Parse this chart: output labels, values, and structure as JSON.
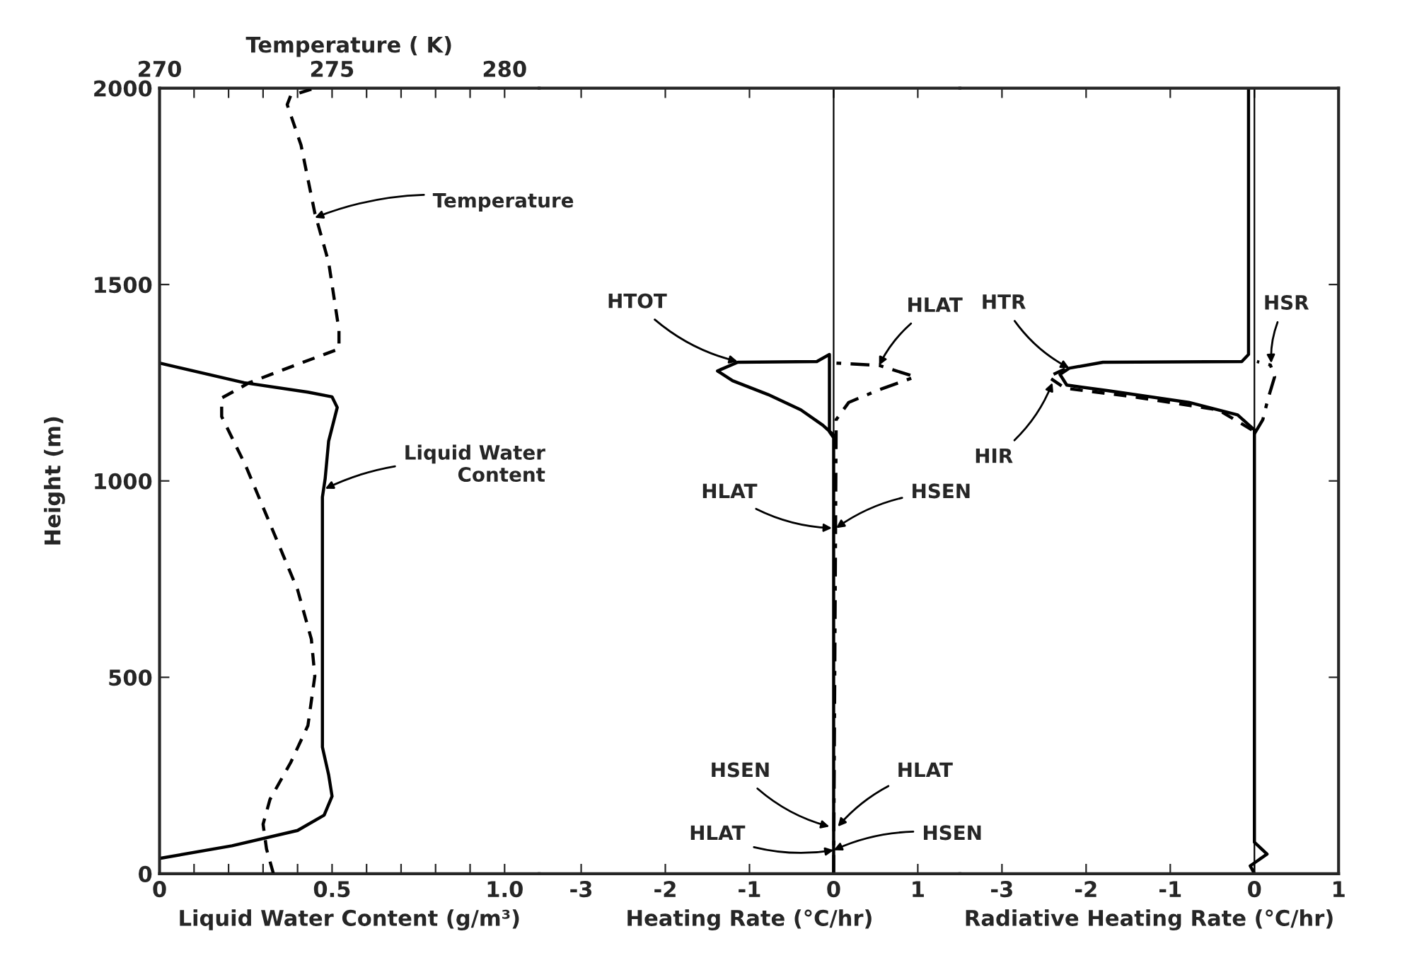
{
  "chart_data": [
    {
      "type": "line",
      "xlabel": "Liquid Water Content (g/m³)",
      "ylabel": "Height (m)",
      "x2label": "Temperature ( K)",
      "xlim": [
        0,
        1.1
      ],
      "xticks": [
        0,
        {
          "value": 0.1,
          "label": null
        },
        {
          "value": 0.2,
          "label": null
        },
        {
          "value": 0.3,
          "label": null
        },
        {
          "value": 0.4,
          "label": null
        },
        0.5,
        {
          "value": 0.6,
          "label": null
        },
        {
          "value": 0.7,
          "label": null
        },
        {
          "value": 0.8,
          "label": null
        },
        {
          "value": 0.9,
          "label": null
        },
        {
          "value": 1.0,
          "label": "1.0"
        }
      ],
      "x2lim": [
        270,
        281
      ],
      "x2ticks": [
        270,
        {
          "value": 271,
          "label": null
        },
        {
          "value": 272,
          "label": null
        },
        {
          "value": 273,
          "label": null
        },
        {
          "value": 274,
          "label": null
        },
        275,
        {
          "value": 276,
          "label": null
        },
        {
          "value": 277,
          "label": null
        },
        {
          "value": 278,
          "label": null
        },
        {
          "value": 279,
          "label": null
        },
        280
      ],
      "ylim": [
        0,
        2000
      ],
      "yticks": [
        0,
        500,
        1000,
        1500,
        2000
      ],
      "grid": false,
      "legend": false,
      "series": [
        {
          "color": "#000000",
          "line_style": "solid",
          "x": [
            0,
            0.21,
            0.4,
            0.477,
            0.5,
            0.49,
            0.472,
            0.472,
            0.48,
            0.49,
            0.515,
            0.5,
            0.43,
            0.245,
            0
          ],
          "values": [
            39,
            71,
            110,
            149,
            197,
            252,
            322,
            959,
            1006,
            1101,
            1187,
            1214,
            1226,
            1250,
            1300
          ]
        },
        {
          "color": "#000000",
          "line_style": "dashed",
          "axis": "x2",
          "x": [
            273.3,
            273.1,
            273.0,
            273.2,
            273.8,
            274.3,
            274.5,
            274.4,
            274.0,
            273.4,
            272.5,
            271.8,
            271.8,
            272.6,
            274.0,
            275.2,
            275.2,
            274.9,
            274.5,
            274.1,
            273.7,
            273.8,
            274.4
          ],
          "values": [
            0,
            63,
            126,
            189,
            283,
            377,
            503,
            597,
            723,
            849,
            1038,
            1164,
            1211,
            1250,
            1297,
            1336,
            1384,
            1557,
            1682,
            1855,
            1958,
            1981,
            1997
          ]
        }
      ],
      "annotations": [
        {
          "text": "Temperature",
          "x": 0.45,
          "y": 1670
        },
        {
          "text": "Liquid Water\nContent",
          "x": 0.48,
          "y": 980
        }
      ]
    },
    {
      "type": "line",
      "xlabel": "Heating Rate (°C/hr)",
      "tick_labels": "x",
      "xlim": [
        -3.5,
        1.5
      ],
      "xticks": [
        -3,
        -2,
        -1,
        0,
        1
      ],
      "ylim": [
        0,
        2000
      ],
      "grid": false,
      "legend": false,
      "ref_lines": [
        {
          "axis": "x",
          "value": 0,
          "color": "#000000"
        }
      ],
      "series": [
        {
          "color": "#000000",
          "line_style": "solid",
          "x": [
            0,
            0,
            -0.05,
            -0.05,
            -0.2,
            -1.14,
            -1.38,
            -1.2,
            -0.78,
            -0.39,
            -0.13,
            0,
            0
          ],
          "values": [
            0,
            1110,
            1125,
            1322,
            1304,
            1302,
            1280,
            1255,
            1220,
            1181,
            1142,
            1117,
            1110
          ]
        },
        {
          "color": "#000000",
          "line_style": "dashdot",
          "x": [
            0,
            0.03,
            0.03,
            0.18,
            0.54,
            0.97,
            0.54,
            0.03
          ],
          "values": [
            0,
            1140,
            1156,
            1200,
            1232,
            1265,
            1294,
            1300
          ]
        }
      ],
      "annotations": [
        {
          "text": "HTOT",
          "x": -1.14,
          "y": 1304
        },
        {
          "text": "HLAT",
          "x": 0.54,
          "y": 1294
        },
        {
          "text": "HLAT",
          "x": -0.02,
          "y": 880
        },
        {
          "text": "HSEN",
          "x": 0.03,
          "y": 880
        },
        {
          "text": "HSEN",
          "x": -0.05,
          "y": 120
        },
        {
          "text": "HLAT",
          "x": 0.05,
          "y": 120
        },
        {
          "text": "HLAT",
          "x": 0,
          "y": 60
        },
        {
          "text": "HSEN",
          "x": 0,
          "y": 60
        }
      ]
    },
    {
      "type": "line",
      "xlabel": "Radiative Heating Rate (°C/hr)",
      "tick_labels": "x",
      "xlim": [
        -3.5,
        1
      ],
      "xticks": [
        -3,
        -2,
        -1,
        0,
        1
      ],
      "ylim": [
        0,
        2000
      ],
      "grid": false,
      "legend": false,
      "ref_lines": [
        {
          "axis": "x",
          "value": 0,
          "color": "#000000"
        }
      ],
      "series": [
        {
          "color": "#000000",
          "line_style": "solid",
          "x": [
            0,
            -0.05,
            0.15,
            0,
            0,
            -0.2,
            -0.78,
            -1.75,
            -2.23,
            -2.31,
            -2.2,
            -1.8,
            -0.15,
            -0.07,
            -0.07
          ],
          "values": [
            0,
            20,
            50,
            80,
            1130,
            1168,
            1200,
            1230,
            1244,
            1271,
            1287,
            1302,
            1304,
            1322,
            2000
          ]
        },
        {
          "color": "#000000",
          "line_style": "dashed",
          "x": [
            -0.03,
            -0.43,
            -1.4,
            -2.25,
            -2.45,
            -2.2
          ],
          "values": [
            1130,
            1181,
            1213,
            1236,
            1265,
            1290
          ]
        },
        {
          "color": "#000000",
          "line_style": "dashdot",
          "x": [
            0,
            0.1,
            0.16,
            0.24,
            0.19,
            0.03
          ],
          "values": [
            1120,
            1156,
            1208,
            1265,
            1295,
            1304
          ]
        }
      ],
      "annotations": [
        {
          "text": "HTR",
          "x": -2.2,
          "y": 1287
        },
        {
          "text": "HIR",
          "x": -2.4,
          "y": 1250
        },
        {
          "text": "HSR",
          "x": 0.2,
          "y": 1300
        }
      ]
    }
  ]
}
